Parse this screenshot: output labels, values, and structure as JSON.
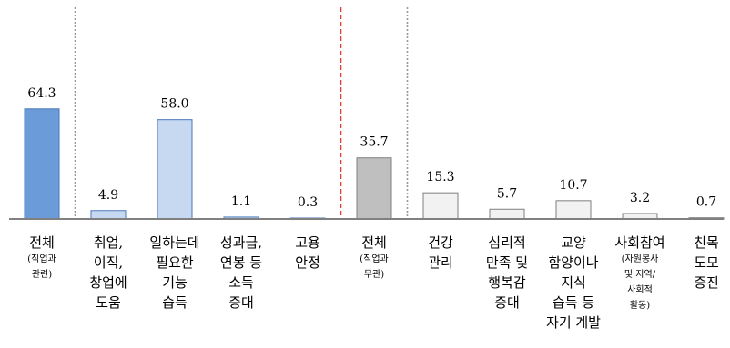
{
  "chart_data": {
    "type": "bar",
    "title": "",
    "xlabel": "",
    "ylabel": "",
    "ylim": [
      0,
      70
    ],
    "grid": false,
    "legend": "none",
    "categories": [
      {
        "main": [
          "전체"
        ],
        "sub": [
          "(직업과",
          "관련)"
        ]
      },
      {
        "main": [
          "취업,",
          "이직,",
          "창업에",
          "도움"
        ],
        "sub": []
      },
      {
        "main": [
          "일하는데",
          "필요한",
          "기능",
          "습득"
        ],
        "sub": []
      },
      {
        "main": [
          "성과급,",
          "연봉 등",
          "소득",
          "증대"
        ],
        "sub": []
      },
      {
        "main": [
          "고용",
          "안정"
        ],
        "sub": []
      },
      {
        "main": [
          "전체"
        ],
        "sub": [
          "(직업과",
          "무관)"
        ]
      },
      {
        "main": [
          "건강",
          "관리"
        ],
        "sub": []
      },
      {
        "main": [
          "심리적",
          "만족 및",
          "행복감",
          "증대"
        ],
        "sub": []
      },
      {
        "main": [
          "교양",
          "함양이나",
          "지식",
          "습득 등",
          "자기 계발"
        ],
        "sub": []
      },
      {
        "main": [
          "사회참여"
        ],
        "sub": [
          "(자원봉사",
          "및 지역/",
          "사회적",
          "활동)"
        ]
      },
      {
        "main": [
          "친목",
          "도모",
          "증진"
        ],
        "sub": []
      }
    ],
    "values": [
      64.3,
      4.9,
      58.0,
      1.1,
      0.3,
      35.7,
      15.3,
      5.7,
      10.7,
      3.2,
      0.7
    ],
    "value_labels": [
      "64.3",
      "4.9",
      "58.0",
      "1.1",
      "0.3",
      "35.7",
      "15.3",
      "5.7",
      "10.7",
      "3.2",
      "0.7"
    ],
    "colors": {
      "total_related": "#6B9BD9",
      "related": "#C6D9F1",
      "related_stroke": "#4A78B8",
      "total_unrelated": "#BFBFBF",
      "unrelated": "#F2F2F2",
      "unrelated_stroke": "#7F7F7F",
      "axis": "#808080",
      "group_divider": "#999999",
      "center_divider": "#E0403A"
    },
    "fill_keys": [
      "total_related",
      "related",
      "related",
      "related",
      "related",
      "total_unrelated",
      "unrelated",
      "unrelated",
      "unrelated",
      "unrelated",
      "unrelated"
    ]
  }
}
